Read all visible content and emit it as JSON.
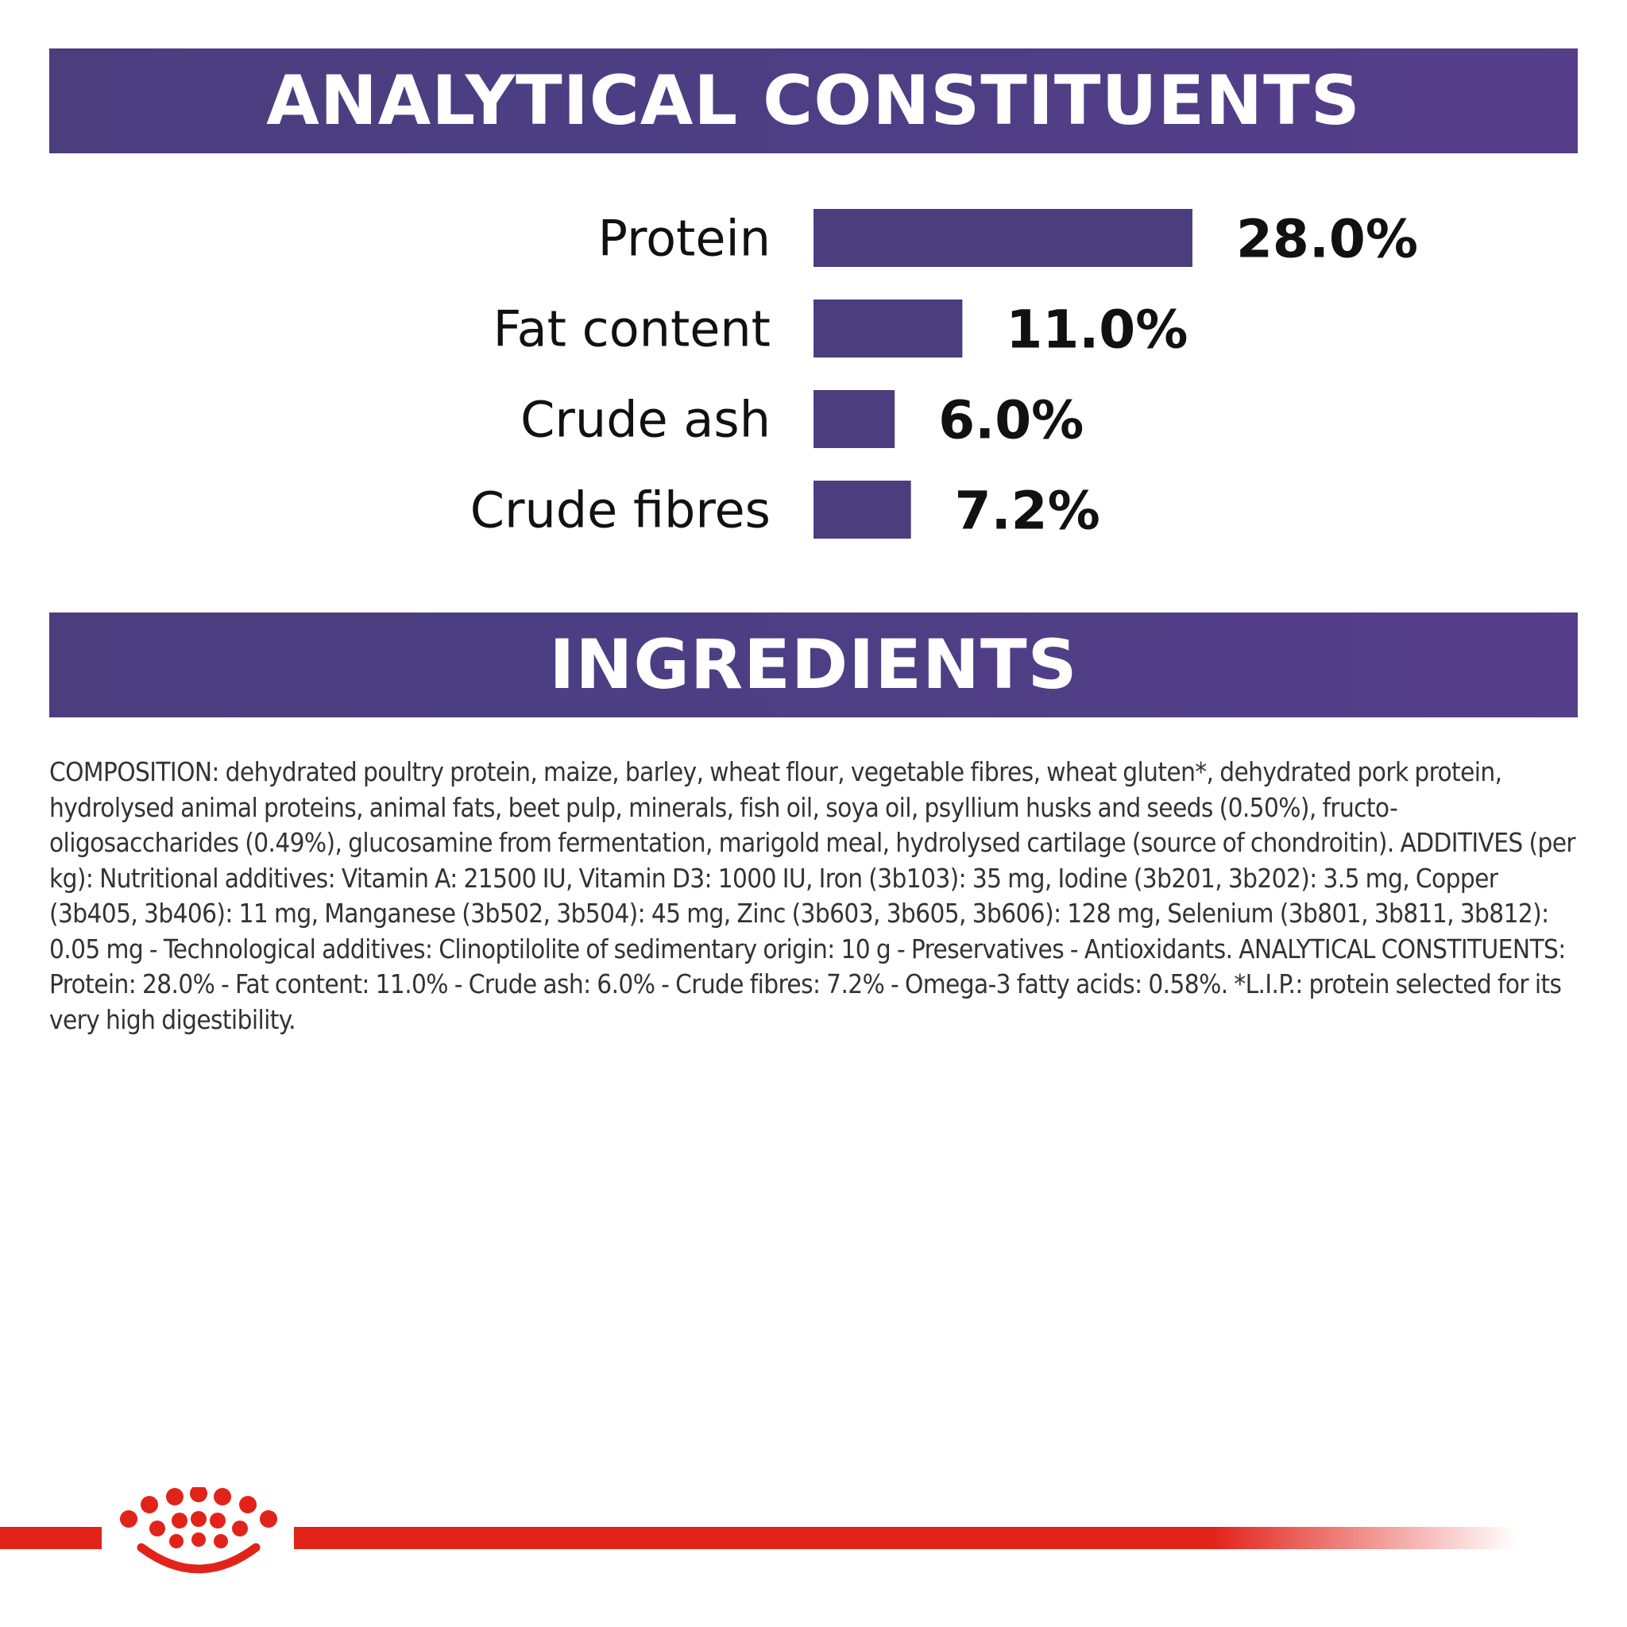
{
  "sections": {
    "analytical_title": "ANALYTICAL CONSTITUENTS",
    "ingredients_title": "INGREDIENTS"
  },
  "chart_data": {
    "type": "bar",
    "orientation": "horizontal",
    "categories": [
      "Protein",
      "Fat content",
      "Crude ash",
      "Crude fibres"
    ],
    "values": [
      28.0,
      11.0,
      6.0,
      7.2
    ],
    "value_labels": [
      "28.0%",
      "11.0%",
      "6.0%",
      "7.2%"
    ],
    "unit": "%",
    "grid": false,
    "legend": "none",
    "bar_color": "#4c3d7e"
  },
  "ingredients": {
    "text": "COMPOSITION: dehydrated poultry protein, maize, barley, wheat flour, vegetable fibres, wheat gluten*, dehydrated pork protein, hydrolysed animal proteins, animal fats, beet pulp, minerals, fish oil, soya oil, psyllium husks and seeds (0.50%), fructo-oligosaccharides (0.49%), glucosamine from fermentation, marigold meal, hydrolysed cartilage (source of chondroitin). ADDITIVES (per kg): Nutritional additives: Vitamin A: 21500 IU, Vitamin D3: 1000 IU, Iron (3b103): 35 mg, Iodine (3b201, 3b202): 3.5 mg, Copper (3b405, 3b406): 11 mg, Manganese (3b502, 3b504): 45 mg, Zinc (3b603, 3b605, 3b606): 128 mg, Selenium (3b801, 3b811, 3b812): 0.05 mg - Technological additives: Clinoptilolite of sedimentary origin: 10 g - Preservatives - Antioxidants. ANALYTICAL CONSTITUENTS: Protein: 28.0% - Fat content: 11.0% - Crude ash: 6.0% - Crude fibres: 7.2% - Omega-3 fatty acids: 0.58%. *L.I.P.: protein selected for its very high digestibility."
  },
  "brand": {
    "accent_color": "#e2231a",
    "logo_icon": "crown-icon"
  }
}
